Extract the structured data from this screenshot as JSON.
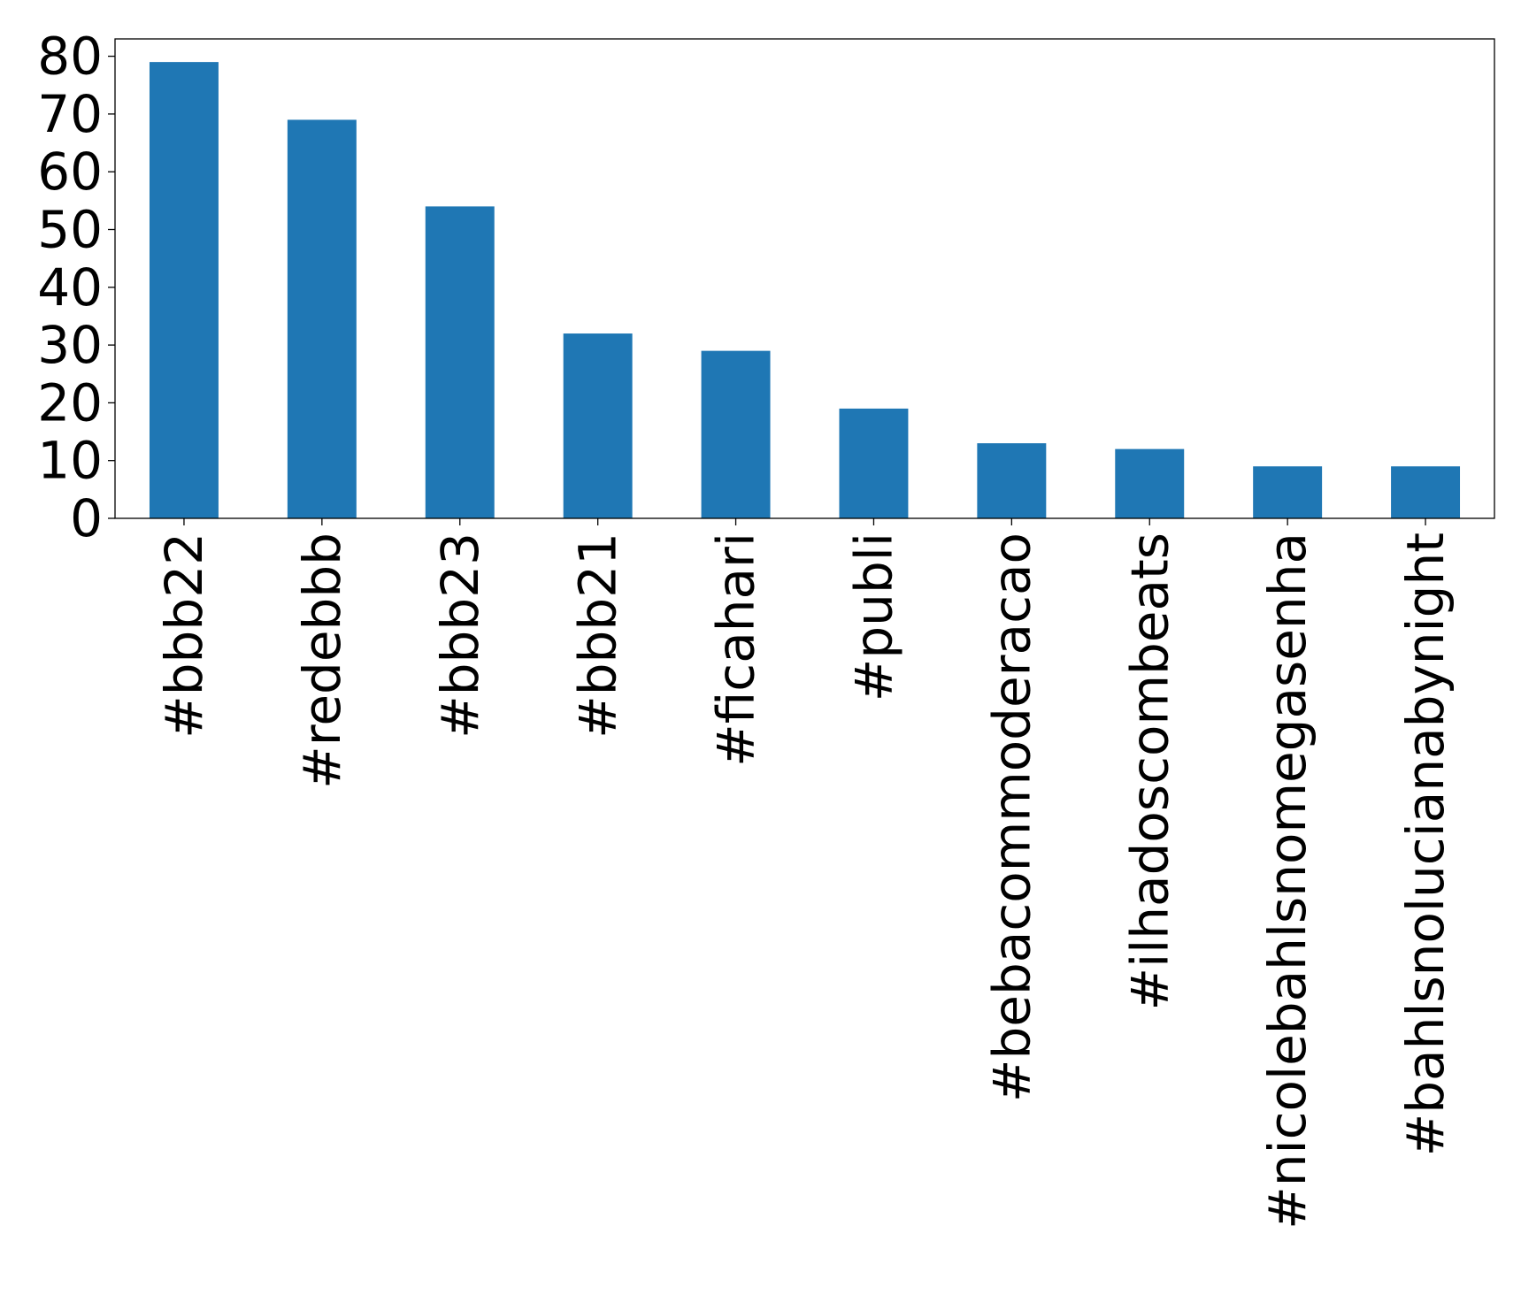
{
  "chart_data": {
    "type": "bar",
    "title": "",
    "xlabel": "",
    "ylabel": "",
    "categories": [
      "#bbb22",
      "#redebbb",
      "#bbb23",
      "#bbb21",
      "#ficahari",
      "#publi",
      "#bebacommoderacao",
      "#ilhadoscombeats",
      "#nicolebahlsnomegasenha",
      "#bahlsnolucianabynight"
    ],
    "values": [
      79,
      69,
      54,
      32,
      29,
      19,
      13,
      12,
      9,
      9
    ],
    "ylim": [
      0,
      83
    ],
    "yticks": [
      0,
      10,
      20,
      30,
      40,
      50,
      60,
      70,
      80
    ],
    "ytick_labels": [
      "0",
      "10",
      "20",
      "30",
      "40",
      "50",
      "60",
      "70",
      "80"
    ],
    "bar_color": "#1f77b4",
    "grid": false,
    "legend": false
  }
}
